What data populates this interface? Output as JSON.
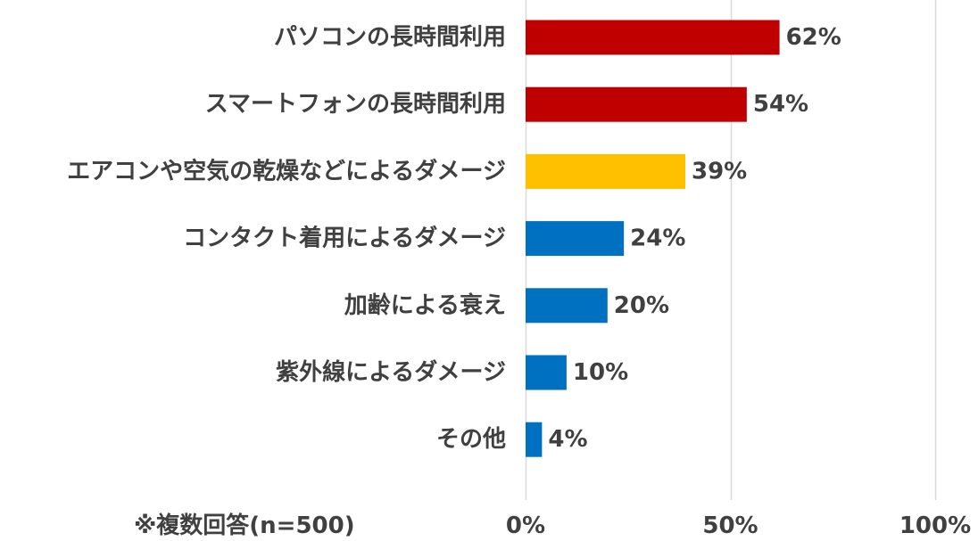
{
  "chart_data": {
    "type": "bar",
    "orientation": "horizontal",
    "categories": [
      "パソコンの長時間利用",
      "スマートフォンの長時間利用",
      "エアコンや空気の乾燥などによるダメージ",
      "コンタクト着用によるダメージ",
      "加齢による衰え",
      "紫外線によるダメージ",
      "その他"
    ],
    "values": [
      62,
      54,
      39,
      24,
      20,
      10,
      4
    ],
    "value_labels": [
      "62%",
      "54%",
      "39%",
      "24%",
      "20%",
      "10%",
      "4%"
    ],
    "bar_colors": [
      "#c00000",
      "#c00000",
      "#ffc000",
      "#0070c0",
      "#0070c0",
      "#0070c0",
      "#0070c0"
    ],
    "xlim": [
      0,
      100
    ],
    "x_ticks": [
      0,
      50,
      100
    ],
    "x_tick_labels": [
      "0%",
      "50%",
      "100%"
    ],
    "grid": true,
    "gridline_color": "#d9d9d9",
    "legend": "none",
    "note": "※複数回答(n=500)"
  }
}
